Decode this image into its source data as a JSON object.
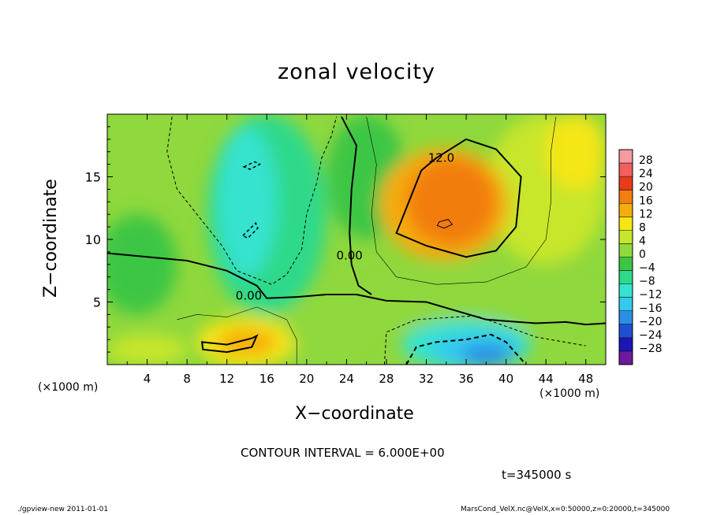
{
  "chart_data": {
    "type": "heatmap",
    "title": "zonal velocity",
    "xlabel": "X−coordinate",
    "ylabel": "Z−coordinate",
    "x_unit_left": "(×1000 m)",
    "x_unit_right": "(×1000 m)",
    "xlim": [
      0,
      50
    ],
    "ylim": [
      0,
      20
    ],
    "x_ticks": [
      4,
      8,
      12,
      16,
      20,
      24,
      28,
      32,
      36,
      40,
      44,
      48
    ],
    "y_ticks": [
      5,
      10,
      15
    ],
    "contour_interval": "CONTOUR INTERVAL = 6.000E+00",
    "time_label": "t=345000 s",
    "contour_labels": [
      {
        "text": "12.0",
        "x": 33.5,
        "y": 16.5
      },
      {
        "text": "0.00",
        "x": 24.3,
        "y": 8.7
      },
      {
        "text": "0.00",
        "x": 14.2,
        "y": 5.5
      }
    ],
    "colorbar": {
      "levels": [
        28,
        24,
        20,
        16,
        12,
        8,
        4,
        0,
        -4,
        -8,
        -12,
        -16,
        -20,
        -24,
        -28
      ],
      "colors": [
        "#f59aa0",
        "#f15f5f",
        "#e83b1b",
        "#f27d10",
        "#f6ab0e",
        "#f5e615",
        "#c8e62c",
        "#8fd83d",
        "#3cc644",
        "#2fd98a",
        "#34e3cf",
        "#35c9ef",
        "#2c8fe6",
        "#2050d2",
        "#1b16b6",
        "#6b1a9a"
      ]
    },
    "features": [
      {
        "name": "positive core",
        "x": 33.8,
        "y": 11.3,
        "value": 18
      },
      {
        "name": "negative upper cells",
        "x": 14.2,
        "y": 13,
        "value": -8
      },
      {
        "name": "negative bottom cell",
        "x": 37,
        "y": 1.2,
        "value": -18
      },
      {
        "name": "positive bottom cell",
        "x": 14,
        "y": 1.8,
        "value": 14
      }
    ]
  },
  "footer": {
    "left": "./gpview-new   2011-01-01",
    "right": "MarsCond_VelX.nc@VelX,x=0:50000,z=0:20000,t=345000"
  }
}
